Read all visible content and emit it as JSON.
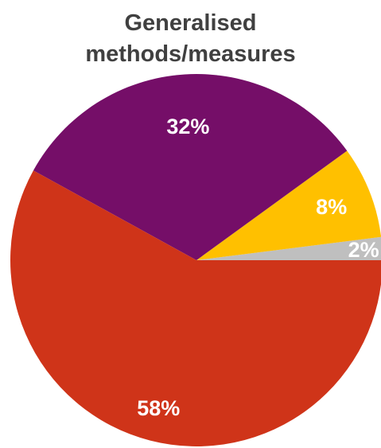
{
  "chart_data": {
    "type": "pie",
    "title": [
      "Generalised",
      "methods/measures"
    ],
    "start_angle_deg": 0,
    "direction": "counterclockwise",
    "slices": [
      {
        "label": "2%",
        "value": 2,
        "color": "#BFBFBF"
      },
      {
        "label": "8%",
        "value": 8,
        "color": "#FFC000"
      },
      {
        "label": "32%",
        "value": 32,
        "color": "#750E68"
      },
      {
        "label": "58%",
        "value": 58,
        "color": "#CF3419"
      }
    ],
    "legend": "none"
  }
}
